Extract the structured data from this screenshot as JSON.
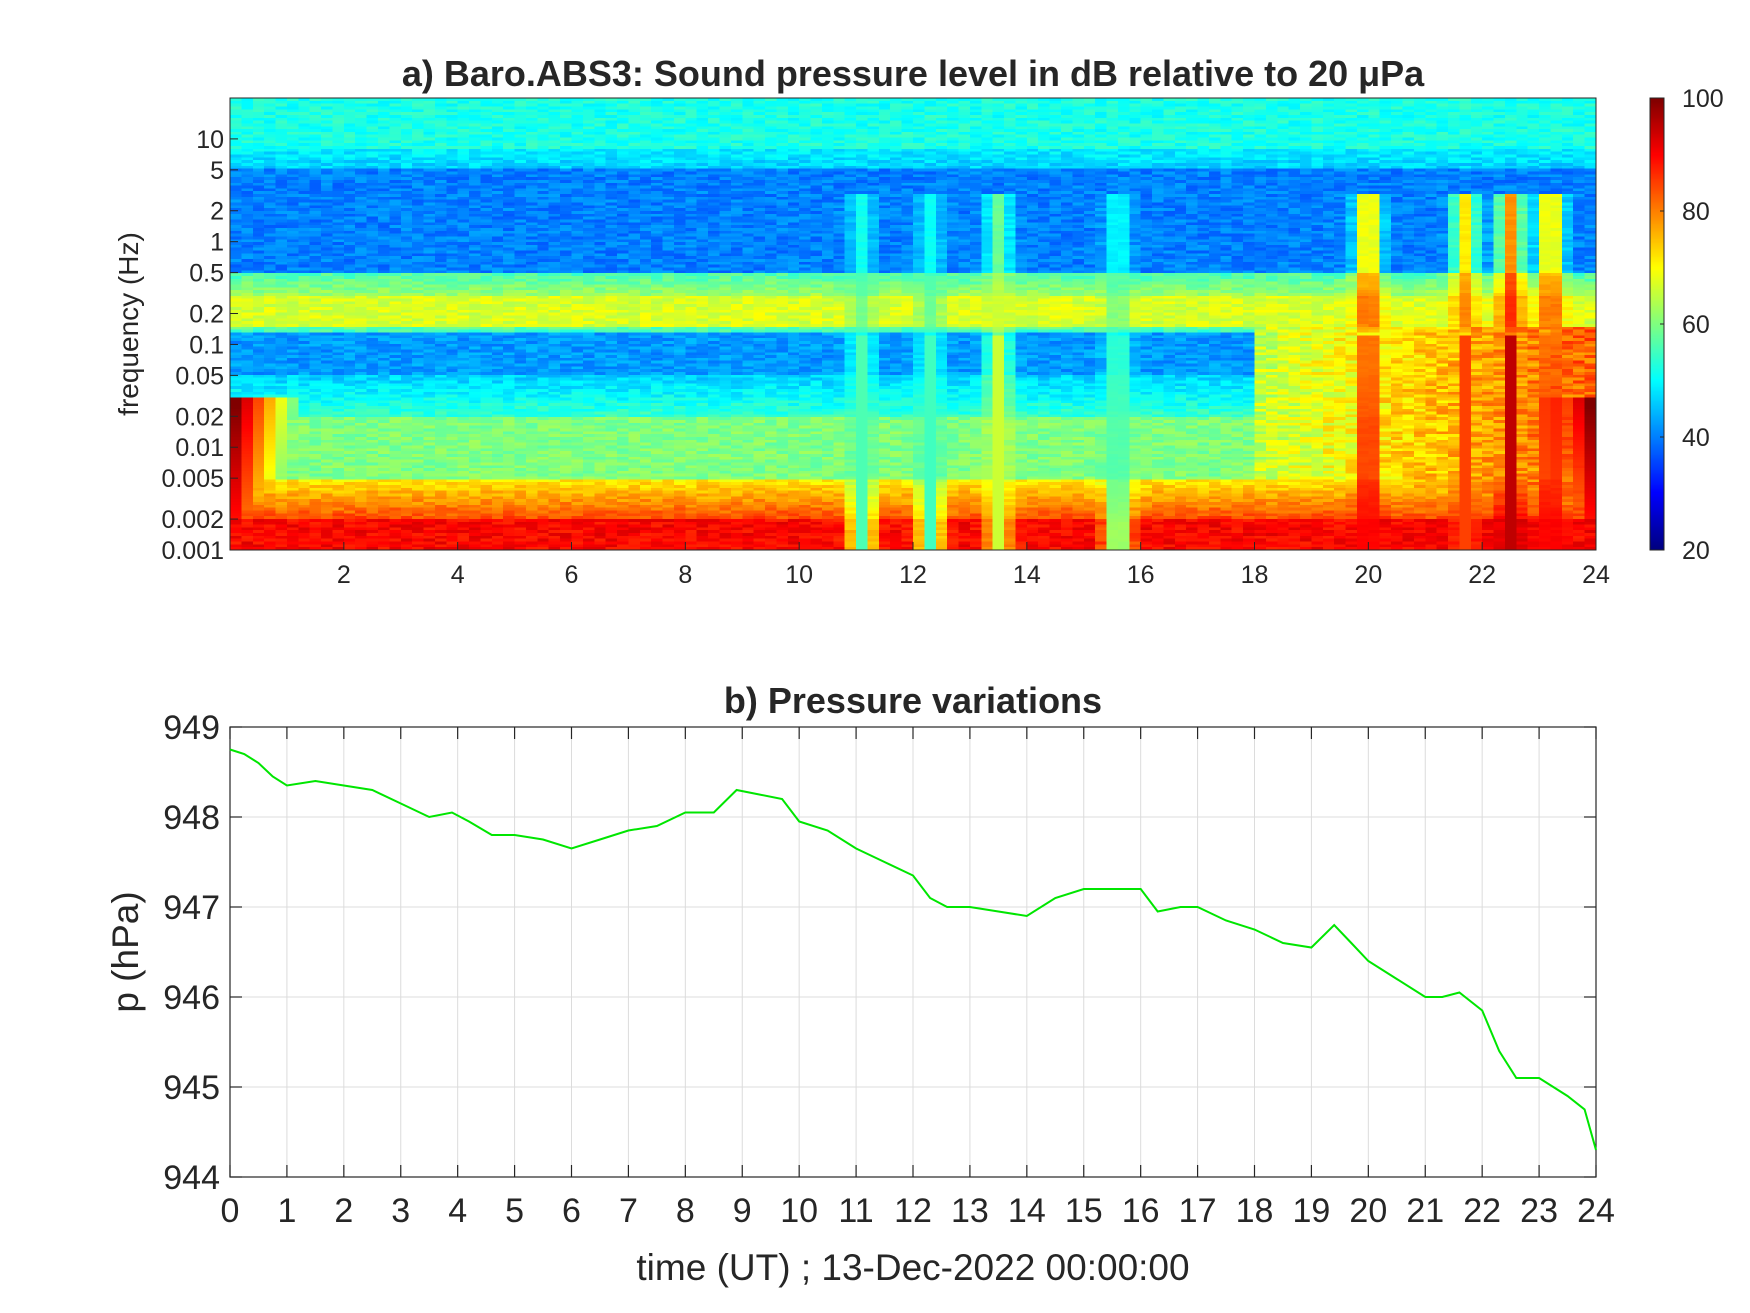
{
  "chart_data": [
    {
      "type": "heatmap",
      "title": "a) Baro.ABS3: Sound pressure level in dB relative to 20 μPa",
      "xlabel": "",
      "ylabel": "frequency (Hz)",
      "x_ticks": [
        "2",
        "4",
        "6",
        "8",
        "10",
        "12",
        "14",
        "16",
        "18",
        "20",
        "22",
        "24"
      ],
      "y_ticks": [
        "10",
        "5",
        "2",
        "1",
        "0.5",
        "0.2",
        "0.1",
        "0.05",
        "0.02",
        "0.01",
        "0.005",
        "0.002",
        "0.001"
      ],
      "xlim": [
        0,
        24
      ],
      "ylim": [
        0.001,
        25
      ],
      "yscale": "log",
      "colormap": "jet",
      "colorbar": {
        "ticks": [
          "100",
          "80",
          "60",
          "40",
          "20"
        ],
        "clim": [
          20,
          100
        ]
      },
      "value_bands_db": [
        {
          "freq_range_hz": [
            8,
            25
          ],
          "level_db": 52
        },
        {
          "freq_range_hz": [
            0.5,
            5
          ],
          "level_db": 40
        },
        {
          "freq_range_hz": [
            0.15,
            0.3
          ],
          "level_db": 67
        },
        {
          "freq_range_hz": [
            0.05,
            0.13
          ],
          "level_db": 42
        },
        {
          "freq_range_hz": [
            0.005,
            0.02
          ],
          "level_db": 60
        },
        {
          "freq_range_hz": [
            0.001,
            0.002
          ],
          "level_db": 90
        }
      ],
      "bursts": [
        {
          "hour": 11.1,
          "level_db": 56
        },
        {
          "hour": 12.3,
          "level_db": 55
        },
        {
          "hour": 13.5,
          "level_db": 66
        },
        {
          "hour": 15.6,
          "level_db": 56
        },
        {
          "hour": 20.0,
          "level_db": 90
        },
        {
          "hour": 21.7,
          "level_db": 85
        },
        {
          "hour": 22.5,
          "level_db": 95
        },
        {
          "hour": 23.2,
          "level_db": 90
        }
      ]
    },
    {
      "type": "line",
      "title": "b) Pressure variations",
      "xlabel": "time (UT) ; 13-Dec-2022 00:00:00",
      "ylabel": "p (hPa)",
      "xlim": [
        0,
        24
      ],
      "ylim": [
        944,
        949
      ],
      "grid": true,
      "x_ticks": [
        "0",
        "1",
        "2",
        "3",
        "4",
        "5",
        "6",
        "7",
        "8",
        "9",
        "10",
        "11",
        "12",
        "13",
        "14",
        "15",
        "16",
        "17",
        "18",
        "19",
        "20",
        "21",
        "22",
        "23",
        "24"
      ],
      "y_ticks": [
        "944",
        "945",
        "946",
        "947",
        "948",
        "949"
      ],
      "color": "#00e600",
      "series": [
        {
          "x": [
            0,
            0.25,
            0.5,
            0.75,
            1,
            1.5,
            2,
            2.5,
            3,
            3.5,
            3.9,
            4.2,
            4.6,
            5,
            5.5,
            6,
            6.5,
            7,
            7.5,
            8,
            8.5,
            8.9,
            9.3,
            9.7,
            10,
            10.5,
            11,
            11.5,
            12,
            12.3,
            12.6,
            13,
            13.5,
            14,
            14.5,
            15,
            15.5,
            16,
            16.3,
            16.7,
            17,
            17.5,
            18,
            18.5,
            19,
            19.4,
            19.7,
            20,
            20.5,
            21,
            21.3,
            21.6,
            22,
            22.3,
            22.6,
            23,
            23.5,
            23.8,
            24
          ],
          "values": [
            948.75,
            948.7,
            948.6,
            948.45,
            948.35,
            948.4,
            948.35,
            948.3,
            948.15,
            948.0,
            948.05,
            947.95,
            947.8,
            947.8,
            947.75,
            947.65,
            947.75,
            947.85,
            947.9,
            948.05,
            948.05,
            948.3,
            948.25,
            948.2,
            947.95,
            947.85,
            947.65,
            947.5,
            947.35,
            947.1,
            947.0,
            947.0,
            946.95,
            946.9,
            947.1,
            947.2,
            947.2,
            947.2,
            946.95,
            947.0,
            947.0,
            946.85,
            946.75,
            946.6,
            946.55,
            946.8,
            946.6,
            946.4,
            946.2,
            946.0,
            946.0,
            946.05,
            945.85,
            945.4,
            945.1,
            945.1,
            944.9,
            944.75,
            944.3
          ]
        }
      ]
    }
  ]
}
